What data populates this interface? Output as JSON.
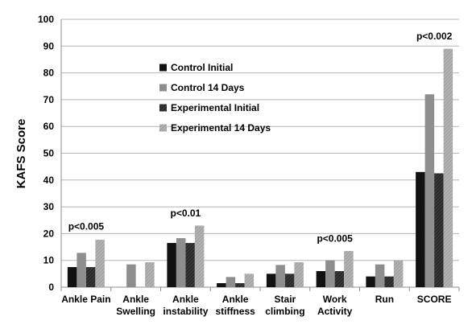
{
  "chart_data": {
    "type": "bar",
    "ylabel": "KAFS Score",
    "xlabel": "",
    "ylim": [
      0,
      100
    ],
    "yticks": [
      "0",
      "10",
      "20",
      "30",
      "40",
      "50",
      "60",
      "70",
      "80",
      "90",
      "100"
    ],
    "grid": true,
    "legend_position": "upper-left-center",
    "categories": [
      [
        "Ankle Pain"
      ],
      [
        "Ankle",
        "Swelling"
      ],
      [
        "Ankle",
        "instability"
      ],
      [
        "Ankle",
        "stiffness"
      ],
      [
        "Stair",
        "climbing"
      ],
      [
        "Work",
        "Activity"
      ],
      [
        "Run"
      ],
      [
        "SCORE"
      ]
    ],
    "series": [
      {
        "name": "Control Initial",
        "color": "#111111",
        "pattern": "solid",
        "values": [
          7.5,
          0,
          16.5,
          1.5,
          5,
          6,
          4,
          43
        ]
      },
      {
        "name": "Control 14 Days",
        "color": "#8e8e8e",
        "pattern": "solid",
        "values": [
          12.8,
          8.5,
          18.3,
          3.8,
          8.3,
          10,
          8.5,
          72
        ]
      },
      {
        "name": "Experimental Initial",
        "color": "#2a2a2a",
        "pattern": "hatch-dark",
        "values": [
          7.5,
          0,
          16.5,
          1.5,
          5,
          6,
          4,
          42.5
        ]
      },
      {
        "name": "Experimental 14 Days",
        "color": "#a6a6a6",
        "pattern": "hatch-light",
        "values": [
          17.7,
          9.3,
          23,
          5,
          9.3,
          13.5,
          10,
          89
        ]
      }
    ],
    "annotations": [
      {
        "category_index": 0,
        "text": "p<0.005",
        "y": 21.5
      },
      {
        "category_index": 2,
        "text": "p<0.01",
        "y": 26.5
      },
      {
        "category_index": 5,
        "text": "p<0.005",
        "y": 17
      },
      {
        "category_index": 7,
        "text": "p<0.002",
        "y": 92.5
      }
    ]
  }
}
